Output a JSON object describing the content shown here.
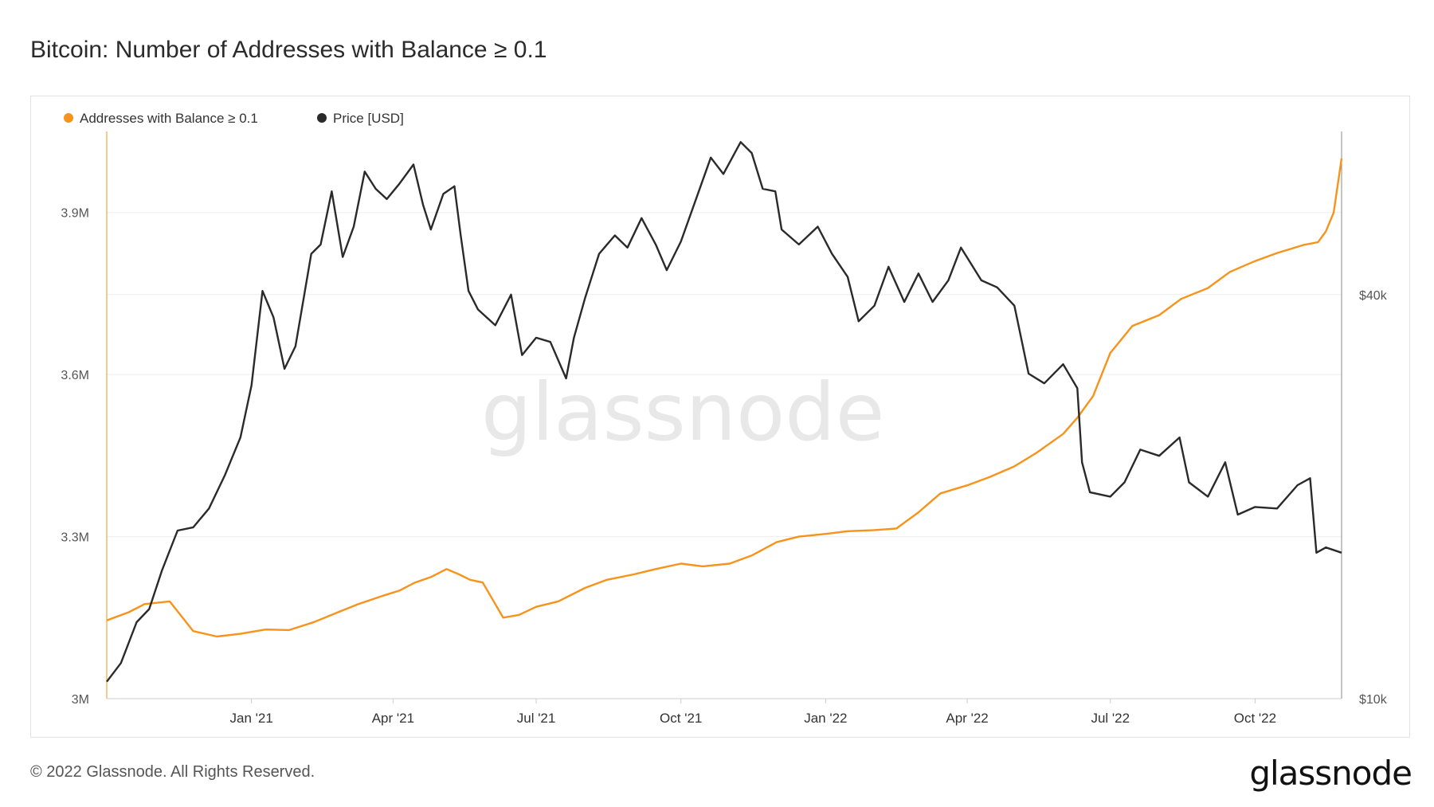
{
  "title": "Bitcoin: Number of Addresses with Balance ≥ 0.1",
  "footer": "© 2022 Glassnode. All Rights Reserved.",
  "brand": "glassnode",
  "watermark": "glassnode",
  "colors": {
    "addresses": "#f7931a",
    "price": "#2a2a2a",
    "grid": "#eeeeee",
    "axis_text": "#555555"
  },
  "chart_data": {
    "type": "line",
    "x_ticks": [
      "Jan '21",
      "Apr '21",
      "Jul '21",
      "Oct '21",
      "Jan '22",
      "Apr '22",
      "Jul '22",
      "Oct '22"
    ],
    "y_left": {
      "ticks": [
        "3M",
        "3.3M",
        "3.6M",
        "3.9M"
      ],
      "tick_values": [
        3000000,
        3300000,
        3600000,
        3900000
      ],
      "range": [
        3000000,
        4050000
      ]
    },
    "y_right": {
      "ticks": [
        "$10k",
        "$40k"
      ],
      "tick_values": [
        10000,
        40000
      ],
      "range": [
        10000,
        70000
      ],
      "scale": "log"
    },
    "legend_position": "top-left",
    "series": [
      {
        "name": "Addresses with Balance ≥ 0.1",
        "axis": "left",
        "color": "#f7931a",
        "x": [
          "2020-10-01",
          "2020-10-15",
          "2020-10-25",
          "2020-11-10",
          "2020-11-25",
          "2020-12-10",
          "2020-12-25",
          "2021-01-10",
          "2021-01-25",
          "2021-02-10",
          "2021-02-25",
          "2021-03-10",
          "2021-03-25",
          "2021-04-05",
          "2021-04-15",
          "2021-04-25",
          "2021-05-05",
          "2021-05-13",
          "2021-05-20",
          "2021-05-28",
          "2021-06-05",
          "2021-06-10",
          "2021-06-20",
          "2021-07-01",
          "2021-07-15",
          "2021-08-01",
          "2021-08-15",
          "2021-09-01",
          "2021-09-15",
          "2021-10-01",
          "2021-10-15",
          "2021-11-01",
          "2021-11-15",
          "2021-12-01",
          "2021-12-15",
          "2022-01-01",
          "2022-01-15",
          "2022-02-01",
          "2022-02-15",
          "2022-03-01",
          "2022-03-15",
          "2022-04-01",
          "2022-04-15",
          "2022-05-01",
          "2022-05-15",
          "2022-06-01",
          "2022-06-10",
          "2022-06-20",
          "2022-07-01",
          "2022-07-15",
          "2022-08-01",
          "2022-08-15",
          "2022-09-01",
          "2022-09-15",
          "2022-10-01",
          "2022-10-15",
          "2022-11-01",
          "2022-11-10",
          "2022-11-15",
          "2022-11-20",
          "2022-11-25"
        ],
        "values": [
          3145000,
          3160000,
          3175000,
          3180000,
          3125000,
          3115000,
          3120000,
          3128000,
          3127000,
          3142000,
          3160000,
          3175000,
          3190000,
          3200000,
          3215000,
          3225000,
          3240000,
          3230000,
          3220000,
          3215000,
          3175000,
          3150000,
          3155000,
          3170000,
          3180000,
          3205000,
          3220000,
          3230000,
          3240000,
          3250000,
          3245000,
          3250000,
          3265000,
          3290000,
          3300000,
          3305000,
          3310000,
          3312000,
          3315000,
          3345000,
          3380000,
          3395000,
          3410000,
          3430000,
          3455000,
          3490000,
          3520000,
          3560000,
          3640000,
          3690000,
          3710000,
          3740000,
          3760000,
          3790000,
          3810000,
          3825000,
          3840000,
          3845000,
          3865000,
          3900000,
          4000000
        ]
      },
      {
        "name": "Price [USD]",
        "axis": "right",
        "color": "#2a2a2a",
        "x": [
          "2020-10-01",
          "2020-10-10",
          "2020-10-20",
          "2020-10-28",
          "2020-11-05",
          "2020-11-15",
          "2020-11-25",
          "2020-12-05",
          "2020-12-15",
          "2020-12-25",
          "2021-01-01",
          "2021-01-08",
          "2021-01-15",
          "2021-01-22",
          "2021-01-29",
          "2021-02-08",
          "2021-02-14",
          "2021-02-21",
          "2021-02-28",
          "2021-03-07",
          "2021-03-14",
          "2021-03-21",
          "2021-03-28",
          "2021-04-05",
          "2021-04-14",
          "2021-04-20",
          "2021-04-25",
          "2021-05-03",
          "2021-05-10",
          "2021-05-14",
          "2021-05-19",
          "2021-05-25",
          "2021-06-05",
          "2021-06-15",
          "2021-06-22",
          "2021-07-01",
          "2021-07-10",
          "2021-07-20",
          "2021-07-25",
          "2021-08-01",
          "2021-08-10",
          "2021-08-20",
          "2021-08-28",
          "2021-09-06",
          "2021-09-15",
          "2021-09-22",
          "2021-10-01",
          "2021-10-10",
          "2021-10-20",
          "2021-10-28",
          "2021-11-08",
          "2021-11-15",
          "2021-11-22",
          "2021-11-30",
          "2021-12-04",
          "2021-12-15",
          "2021-12-27",
          "2022-01-05",
          "2022-01-15",
          "2022-01-22",
          "2022-02-01",
          "2022-02-10",
          "2022-02-20",
          "2022-03-01",
          "2022-03-10",
          "2022-03-20",
          "2022-03-28",
          "2022-04-10",
          "2022-04-20",
          "2022-05-01",
          "2022-05-10",
          "2022-05-20",
          "2022-06-01",
          "2022-06-10",
          "2022-06-13",
          "2022-06-18",
          "2022-07-01",
          "2022-07-10",
          "2022-07-20",
          "2022-08-01",
          "2022-08-14",
          "2022-08-20",
          "2022-09-01",
          "2022-09-12",
          "2022-09-20",
          "2022-10-01",
          "2022-10-15",
          "2022-10-28",
          "2022-11-05",
          "2022-11-09",
          "2022-11-15",
          "2022-11-25"
        ],
        "values": [
          10600,
          11300,
          13000,
          13600,
          15500,
          17800,
          18000,
          19200,
          21500,
          24500,
          29300,
          40500,
          37000,
          31000,
          33500,
          46000,
          47500,
          57000,
          45500,
          50500,
          61000,
          57500,
          55500,
          58500,
          62500,
          54500,
          50000,
          56500,
          58000,
          49000,
          40500,
          38000,
          36000,
          40000,
          32500,
          34500,
          34000,
          30000,
          34500,
          39500,
          46000,
          49000,
          47000,
          52000,
          47500,
          43500,
          48000,
          55000,
          64000,
          60500,
          67500,
          65000,
          57500,
          57000,
          50000,
          47500,
          50500,
          46000,
          42500,
          36500,
          38500,
          44000,
          39000,
          43000,
          39000,
          42000,
          47000,
          42000,
          41000,
          38500,
          30500,
          29500,
          31500,
          29000,
          22500,
          20300,
          20000,
          21000,
          23500,
          23000,
          24500,
          21000,
          20000,
          22500,
          18800,
          19300,
          19200,
          20800,
          21300,
          16500,
          16800,
          16500
        ]
      }
    ]
  }
}
